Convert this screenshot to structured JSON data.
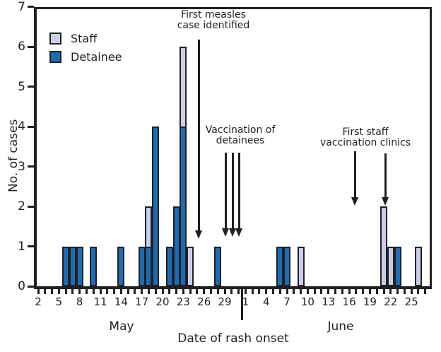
{
  "figure": {
    "colors": {
      "staff": "#c9cfe8",
      "detainee": "#1b6cb5",
      "outline": "#231f20",
      "text": "#231f20"
    },
    "legend": {
      "items": [
        {
          "label": "Staff",
          "series": "staff"
        },
        {
          "label": "Detainee",
          "series": "detainee"
        }
      ]
    },
    "y_axis": {
      "title": "No. of cases",
      "tick_values": [
        0,
        1,
        2,
        3,
        4,
        5,
        6,
        7
      ]
    },
    "x_axis": {
      "title": "Date of rash onset",
      "months": [
        {
          "name": "May",
          "first_day": 2,
          "last_day": 31,
          "labeled_days": [
            2,
            5,
            8,
            11,
            14,
            17,
            20,
            23,
            26,
            29
          ],
          "name_center_x": 172
        },
        {
          "name": "June",
          "first_day": 1,
          "last_day": 27,
          "labeled_days": [
            1,
            4,
            7,
            10,
            13,
            16,
            19,
            22,
            25
          ],
          "name_center_x": 482
        }
      ]
    }
  },
  "chart_data": {
    "type": "bar",
    "stacked": true,
    "series_names": [
      "Staff",
      "Detainee"
    ],
    "ylabel": "No. of cases",
    "xlabel": "Date of rash onset",
    "ylim": [
      0,
      7
    ],
    "bars": [
      {
        "month": "May",
        "day": 6,
        "detainee": 1,
        "staff": 0
      },
      {
        "month": "May",
        "day": 7,
        "detainee": 1,
        "staff": 0
      },
      {
        "month": "May",
        "day": 8,
        "detainee": 1,
        "staff": 0
      },
      {
        "month": "May",
        "day": 10,
        "detainee": 1,
        "staff": 0
      },
      {
        "month": "May",
        "day": 14,
        "detainee": 1,
        "staff": 0
      },
      {
        "month": "May",
        "day": 17,
        "detainee": 1,
        "staff": 0
      },
      {
        "month": "May",
        "day": 18,
        "detainee": 1,
        "staff": 1
      },
      {
        "month": "May",
        "day": 19,
        "detainee": 4,
        "staff": 0
      },
      {
        "month": "May",
        "day": 21,
        "detainee": 1,
        "staff": 0
      },
      {
        "month": "May",
        "day": 22,
        "detainee": 2,
        "staff": 0
      },
      {
        "month": "May",
        "day": 23,
        "detainee": 4,
        "staff": 2
      },
      {
        "month": "May",
        "day": 24,
        "detainee": 0,
        "staff": 1
      },
      {
        "month": "May",
        "day": 28,
        "detainee": 1,
        "staff": 0
      },
      {
        "month": "June",
        "day": 6,
        "detainee": 1,
        "staff": 0
      },
      {
        "month": "June",
        "day": 7,
        "detainee": 1,
        "staff": 0
      },
      {
        "month": "June",
        "day": 9,
        "detainee": 0,
        "staff": 1
      },
      {
        "month": "June",
        "day": 21,
        "detainee": 0,
        "staff": 2
      },
      {
        "month": "June",
        "day": 22,
        "detainee": 0,
        "staff": 1
      },
      {
        "month": "June",
        "day": 23,
        "detainee": 1,
        "staff": 0
      },
      {
        "month": "June",
        "day": 26,
        "detainee": 0,
        "staff": 1
      }
    ],
    "annotations": [
      {
        "id": "first-measles-case",
        "lines": [
          "First measles",
          "case identified"
        ],
        "text_center_x": 302,
        "text_top_y": 14,
        "arrows": [
          {
            "x": 281,
            "y_start": 56,
            "y_tip": 338,
            "points_to": "May 25"
          }
        ]
      },
      {
        "id": "vaccination-of-detainees",
        "lines": [
          "Vaccination of",
          "detainees"
        ],
        "text_center_x": 340,
        "text_top_y": 177,
        "arrows": [
          {
            "x": 319.5,
            "y_start": 216,
            "y_tip": 335,
            "points_to": "May 29"
          },
          {
            "x": 329,
            "y_start": 216,
            "y_tip": 335,
            "points_to": "May 30"
          },
          {
            "x": 338.5,
            "y_start": 216,
            "y_tip": 335,
            "points_to": "May 31"
          }
        ]
      },
      {
        "id": "first-staff-vaccination-clinics",
        "lines": [
          "First staff",
          "vaccination clinics"
        ],
        "text_center_x": 517,
        "text_top_y": 180,
        "arrows": [
          {
            "x": 502,
            "y_start": 214,
            "y_tip": 291,
            "points_to": "June 17"
          },
          {
            "x": 545,
            "y_start": 217,
            "y_tip": 291,
            "points_to": "June 21"
          }
        ]
      }
    ]
  }
}
